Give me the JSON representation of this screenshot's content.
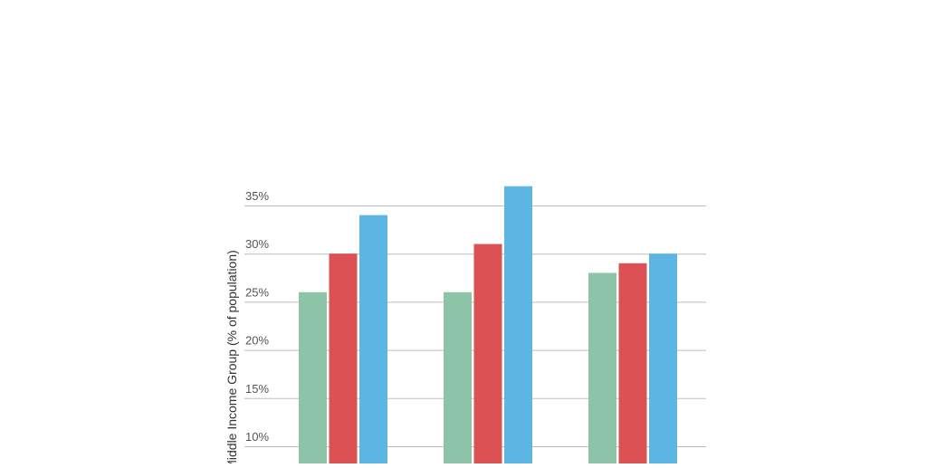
{
  "chart_data": {
    "type": "bar",
    "title": "",
    "xlabel": "",
    "ylabel": "Middle Income Group (% of population)",
    "categories": [
      "",
      "",
      ""
    ],
    "series": [
      {
        "color": "#8dc3a7",
        "values": [
          26,
          26,
          28
        ]
      },
      {
        "color": "#dc5153",
        "values": [
          30,
          31,
          29
        ]
      },
      {
        "color": "#5db5e3",
        "values": [
          34,
          37,
          30
        ]
      }
    ],
    "yticks": [
      {
        "value": 10,
        "label": "10%"
      },
      {
        "value": 15,
        "label": "15%"
      },
      {
        "value": 20,
        "label": "20%"
      },
      {
        "value": 25,
        "label": "25%"
      },
      {
        "value": 30,
        "label": "30%"
      },
      {
        "value": 35,
        "label": "35%"
      }
    ],
    "ylim": [
      0,
      35
    ],
    "grid": true,
    "colors": {
      "grid": "#bdbdbd",
      "tick_text": "#555555",
      "axis_title": "#333333"
    }
  }
}
